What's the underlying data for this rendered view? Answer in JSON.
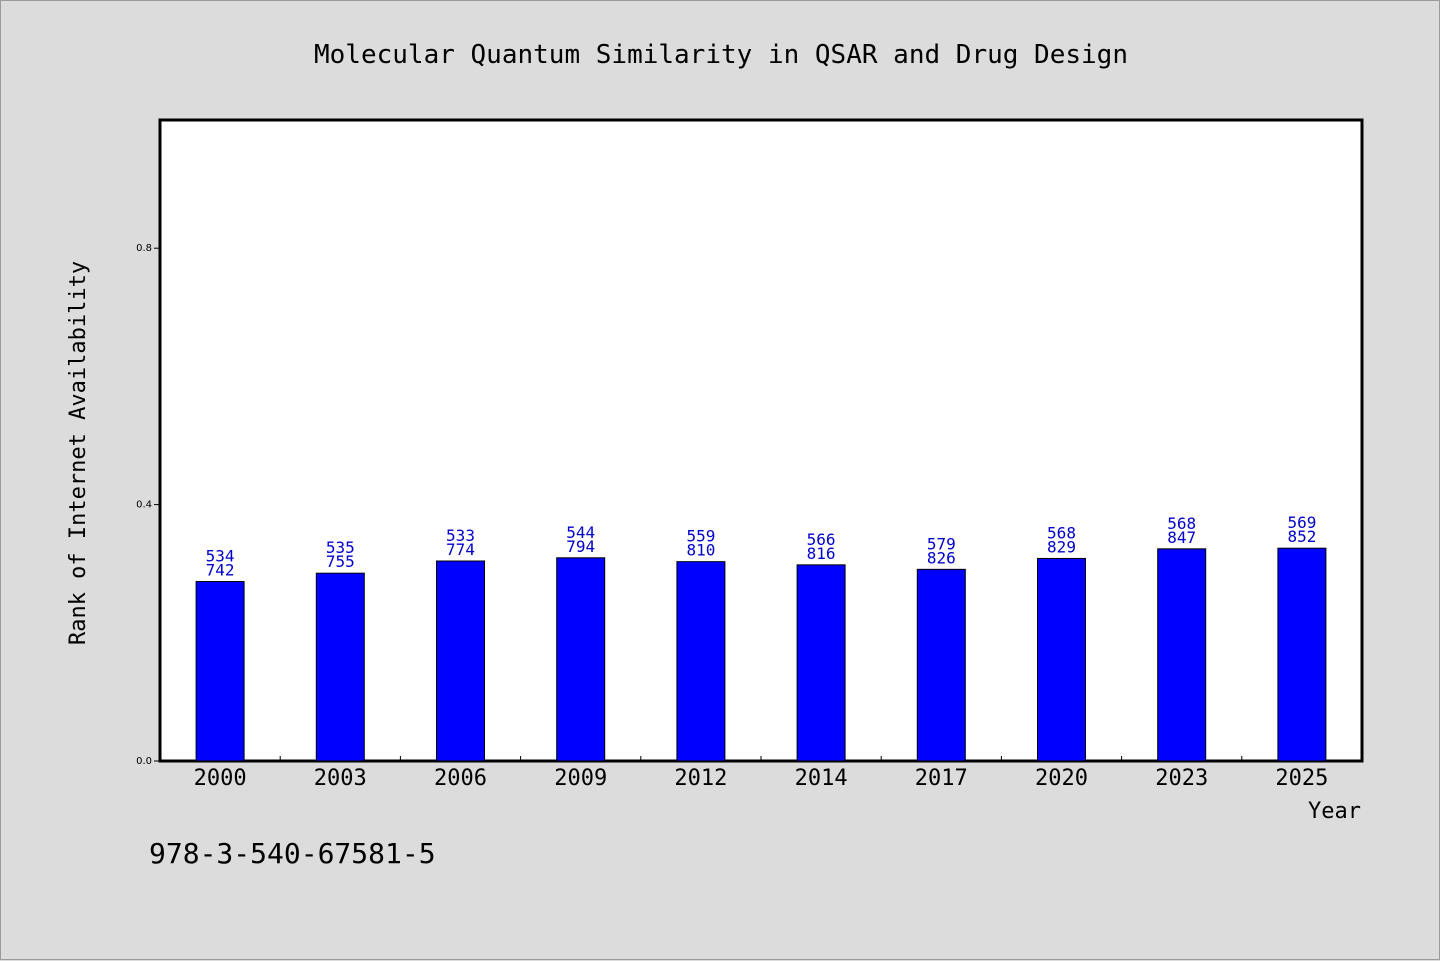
{
  "chart_data": {
    "type": "bar",
    "title": "Molecular Quantum Similarity in QSAR and Drug Design",
    "xlabel": "Year",
    "ylabel": "Rank of Internet Availability",
    "categories": [
      "2000",
      "2003",
      "2006",
      "2009",
      "2012",
      "2014",
      "2017",
      "2020",
      "2023",
      "2025"
    ],
    "values": [
      0.28,
      0.293,
      0.312,
      0.317,
      0.311,
      0.306,
      0.299,
      0.316,
      0.331,
      0.332
    ],
    "label_top": [
      "534",
      "535",
      "533",
      "544",
      "559",
      "566",
      "579",
      "568",
      "568",
      "569"
    ],
    "label_bottom": [
      "742",
      "755",
      "774",
      "794",
      "810",
      "816",
      "826",
      "829",
      "847",
      "852"
    ],
    "ylim": [
      0,
      1.0
    ],
    "yticks": [
      0.0,
      0.4,
      0.8
    ],
    "ytick_labels": [
      "0.0",
      "0.4",
      "0.8"
    ],
    "grid": false,
    "colors": {
      "bar": "#0000ff",
      "label": "#0000cc",
      "background": "#dcdcdc",
      "plot_background": "#ffffff"
    }
  },
  "footer": {
    "isbn": "978-3-540-67581-5"
  }
}
